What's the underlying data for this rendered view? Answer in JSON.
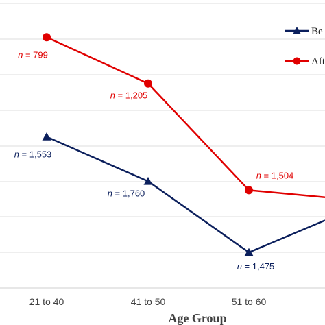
{
  "chart_data": {
    "type": "line",
    "xlabel": "Age Group",
    "categories": [
      "21 to 40",
      "41 to 50",
      "51 to 60",
      ""
    ],
    "grid": true,
    "legend_position": "top-right",
    "series": [
      {
        "name": "Be",
        "color": "#0b1f5c",
        "marker": "triangle",
        "values": [
          42.5,
          30.0,
          10.0,
          19.0
        ],
        "labels": [
          "n = 1,553",
          "n = 1,760",
          "n = 1,475",
          ""
        ]
      },
      {
        "name": "Aft",
        "color": "#e00000",
        "marker": "circle",
        "values": [
          70.5,
          57.5,
          27.5,
          25.5
        ],
        "labels": [
          "n = 799",
          "n = 1,205",
          "n = 1,504",
          ""
        ]
      }
    ],
    "ylim": [
      0,
      80
    ]
  }
}
